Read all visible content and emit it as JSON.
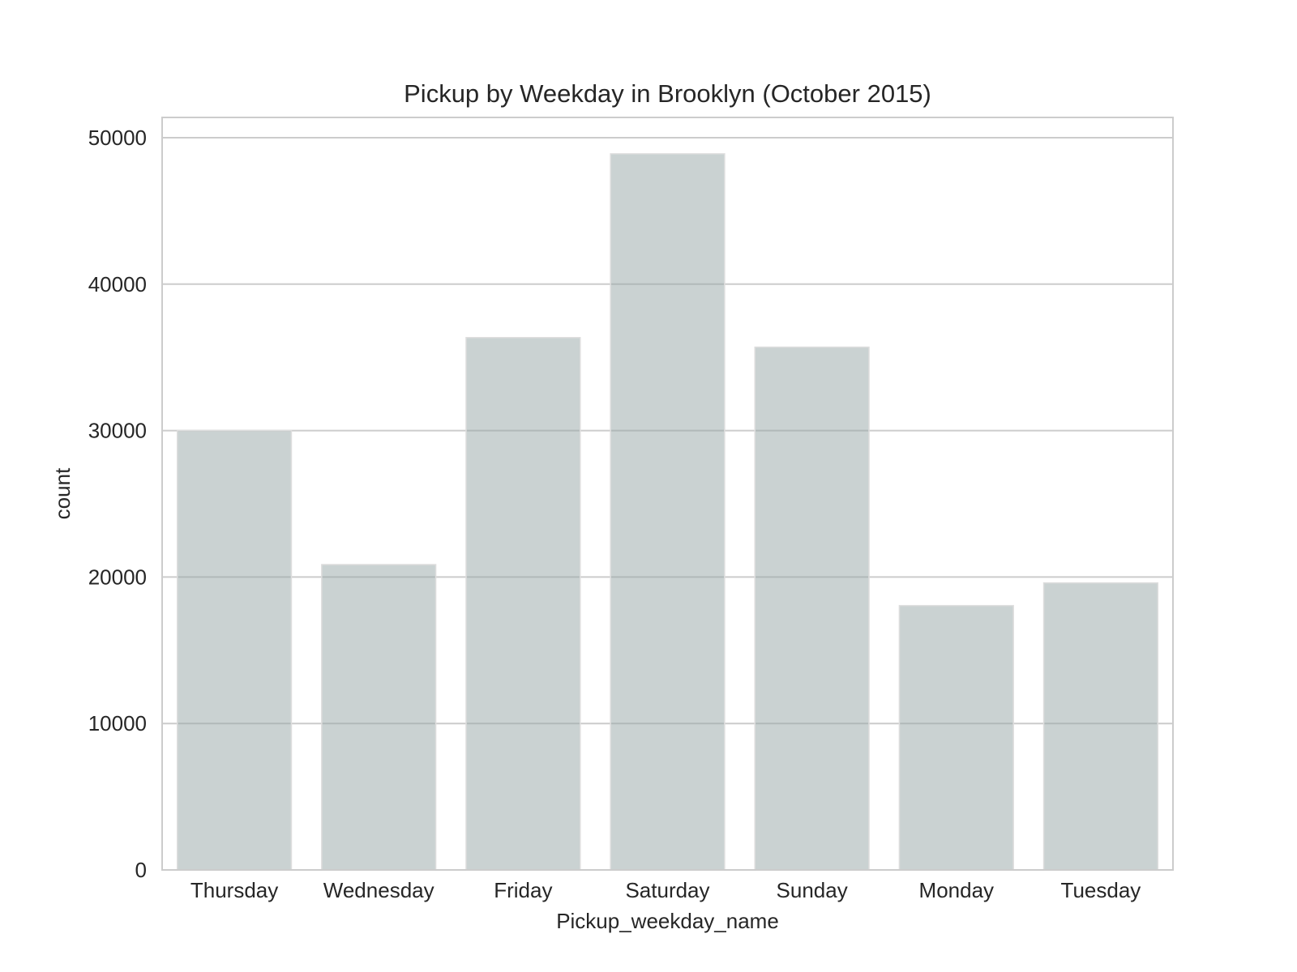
{
  "chart_data": {
    "type": "bar",
    "title": "Pickup by Weekday in Brooklyn (October 2015)",
    "xlabel": "Pickup_weekday_name",
    "ylabel": "count",
    "categories": [
      "Thursday",
      "Wednesday",
      "Friday",
      "Saturday",
      "Sunday",
      "Monday",
      "Tuesday"
    ],
    "values": [
      30000,
      20850,
      36350,
      48900,
      35700,
      18050,
      19600
    ],
    "ylim": [
      0,
      50000
    ],
    "yticks": [
      0,
      10000,
      20000,
      30000,
      40000,
      50000
    ],
    "ytick_labels": [
      "0",
      "10000",
      "20000",
      "30000",
      "40000",
      "50000"
    ],
    "grid": true,
    "bar_color": "#95a5a6",
    "bar_opacity": 0.5
  }
}
